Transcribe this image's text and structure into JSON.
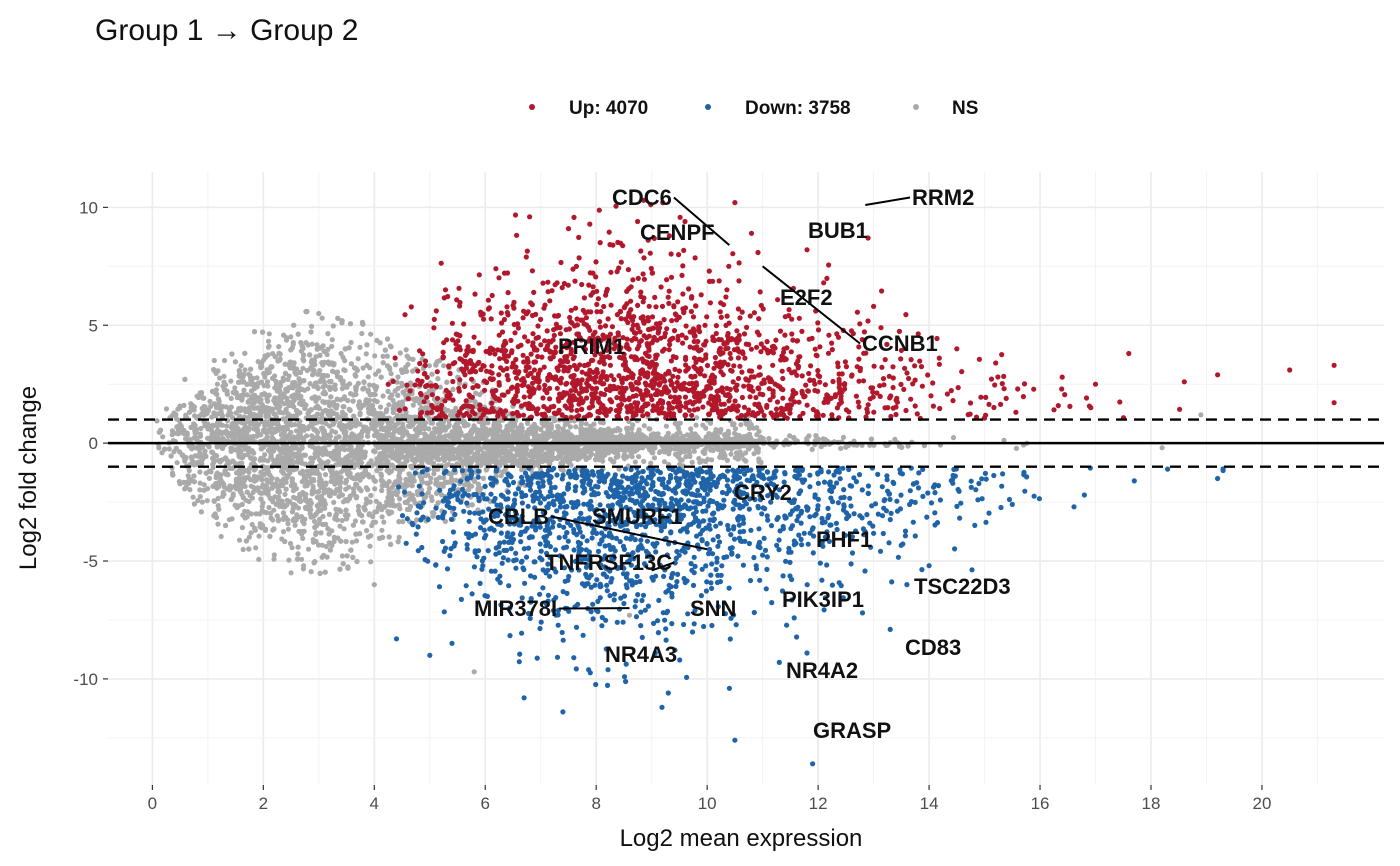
{
  "chart_data": {
    "type": "scatter",
    "title": "Group 1 → Group 2",
    "xlabel": "Log2 mean expression",
    "ylabel": "Log2 fold change",
    "xlim": [
      -0.8,
      22.2
    ],
    "ylim": [
      -14.5,
      11.5
    ],
    "x_ticks": [
      0,
      2,
      4,
      6,
      8,
      10,
      12,
      14,
      16,
      18,
      20
    ],
    "y_ticks": [
      -10,
      -5,
      0,
      5,
      10
    ],
    "y_tick_labels": [
      "-10",
      "-5",
      "0",
      "5",
      "10"
    ],
    "grid": true,
    "legend_position": "top",
    "reference_lines": [
      {
        "y": 0,
        "style": "solid"
      },
      {
        "y": 1,
        "style": "dashed"
      },
      {
        "y": -1,
        "style": "dashed"
      }
    ],
    "colors": {
      "up": "#b2182b",
      "down": "#1f63a8",
      "ns": "#aaaaaa"
    },
    "series": [
      {
        "key": "up",
        "name": "Up: 4070",
        "count": 4070,
        "sample_points": [
          [
            9.6,
            9.4
          ],
          [
            10.5,
            10.2
          ],
          [
            9.2,
            10.2
          ],
          [
            7.5,
            9.1
          ],
          [
            11.8,
            8.2
          ],
          [
            10.8,
            8.9
          ],
          [
            12.1,
            6.8
          ],
          [
            13.0,
            5.8
          ],
          [
            14.5,
            4.0
          ],
          [
            15.2,
            3.4
          ],
          [
            16.4,
            2.8
          ],
          [
            17.0,
            2.5
          ],
          [
            17.6,
            3.8
          ],
          [
            18.6,
            2.6
          ],
          [
            19.2,
            2.9
          ],
          [
            20.5,
            3.1
          ],
          [
            21.3,
            3.3
          ],
          [
            12.9,
            8.7
          ],
          [
            8.3,
            8.4
          ],
          [
            6.8,
            9.6
          ]
        ]
      },
      {
        "key": "down",
        "name": "Down: 3758",
        "count": 3758,
        "sample_points": [
          [
            9.3,
            -10.6
          ],
          [
            10.5,
            -12.6
          ],
          [
            11.9,
            -13.6
          ],
          [
            7.4,
            -11.4
          ],
          [
            6.7,
            -10.8
          ],
          [
            10.4,
            -10.4
          ],
          [
            11.3,
            -9.3
          ],
          [
            11.8,
            -8.9
          ],
          [
            13.3,
            -7.9
          ],
          [
            12.8,
            -7.2
          ],
          [
            13.6,
            -6.0
          ],
          [
            14.0,
            -5.2
          ],
          [
            15.5,
            -2.6
          ],
          [
            16.8,
            -2.2
          ],
          [
            17.7,
            -1.6
          ],
          [
            19.2,
            -1.5
          ],
          [
            18.3,
            -1.1
          ],
          [
            5.0,
            -9.0
          ],
          [
            4.4,
            -8.3
          ],
          [
            8.5,
            -6.8
          ]
        ]
      },
      {
        "key": "ns",
        "name": "NS",
        "count": null,
        "sample_points": [
          [
            5.8,
            -9.7
          ],
          [
            0.5,
            0.8
          ],
          [
            18.9,
            1.2
          ],
          [
            18.2,
            -0.2
          ],
          [
            3.0,
            5.5
          ],
          [
            8.6,
            -7.3
          ],
          [
            4.0,
            -6.0
          ],
          [
            2.5,
            -5.5
          ]
        ]
      }
    ],
    "labeled_genes": [
      {
        "gene": "RRM2",
        "x": 12.85,
        "y": 10.1
      },
      {
        "gene": "CDC6",
        "x": 10.4,
        "y": 8.4
      },
      {
        "gene": "CENPF",
        "x": 10.5,
        "y": 8.35
      },
      {
        "gene": "BUB1",
        "x": 12.1,
        "y": 8.7
      },
      {
        "gene": "E2F2",
        "x": 11.0,
        "y": 7.5
      },
      {
        "gene": "CCNB1",
        "x": 11.0,
        "y": 7.5
      },
      {
        "gene": "PRIM1",
        "x": 8.8,
        "y": 3.9
      },
      {
        "gene": "CRY2",
        "x": 10.5,
        "y": -2.0
      },
      {
        "gene": "CBLB",
        "x": 10.0,
        "y": -4.5
      },
      {
        "gene": "SMURF1",
        "x": 10.0,
        "y": -4.5
      },
      {
        "gene": "PHF1",
        "x": 12.8,
        "y": -4.3
      },
      {
        "gene": "TNFRSF13C",
        "x": 9.0,
        "y": -5.4
      },
      {
        "gene": "SNN",
        "x": 10.8,
        "y": -6.8
      },
      {
        "gene": "MIR378I",
        "x": 8.6,
        "y": -7.0
      },
      {
        "gene": "PIK3IP1",
        "x": 12.4,
        "y": -6.5
      },
      {
        "gene": "TSC22D3",
        "x": 13.8,
        "y": -5.2
      },
      {
        "gene": "CD83",
        "x": 13.4,
        "y": -7.9
      },
      {
        "gene": "NR4A3",
        "x": 9.3,
        "y": -9.4
      },
      {
        "gene": "NR4A2",
        "x": 11.4,
        "y": -9.3
      },
      {
        "gene": "GRASP",
        "x": 11.9,
        "y": -13.6
      }
    ]
  }
}
